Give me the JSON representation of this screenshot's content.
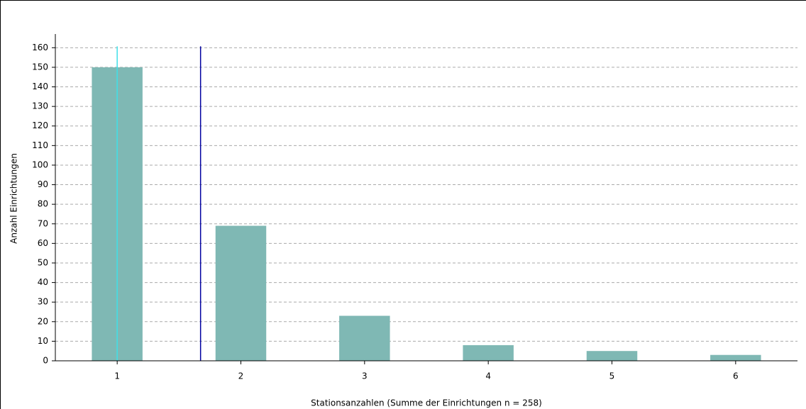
{
  "chart_data": {
    "type": "bar",
    "x_label": "Stationsanzahlen (Summe der Einrichtungen n = 258)",
    "y_label": "Anzahl Einrichtungen",
    "x": [
      1,
      2,
      3,
      4,
      5,
      6
    ],
    "values": [
      150,
      69,
      23,
      8,
      5,
      3
    ],
    "color": "#7fb8b4",
    "xlim": [
      0.5,
      6.5
    ],
    "xticks": [
      1,
      2,
      3,
      4,
      5,
      6
    ],
    "ylim": [
      0,
      167
    ],
    "yticks": [
      0,
      10,
      20,
      30,
      40,
      50,
      60,
      70,
      80,
      90,
      100,
      110,
      120,
      130,
      140,
      150,
      160
    ],
    "grid": true,
    "markers": [
      {
        "value": 1,
        "color": "#40e0e8"
      },
      {
        "value": 1.674,
        "color": "#0000a0"
      }
    ]
  }
}
